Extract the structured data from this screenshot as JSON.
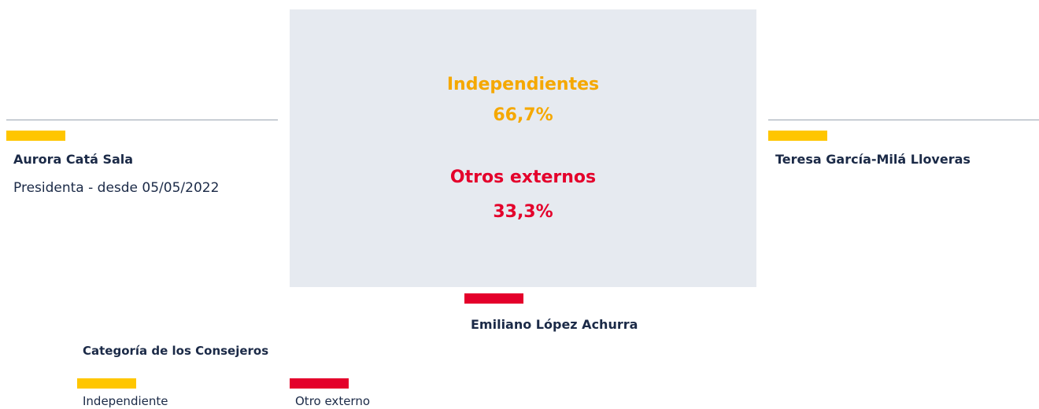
{
  "summary": [
    {
      "label": "Independientes",
      "value": "66,7%"
    },
    {
      "label": "Otros externos",
      "value": "33,3%"
    }
  ],
  "members": [
    {
      "name": "Aurora Catá Sala",
      "role": "Presidenta - desde 05/05/2022"
    },
    {
      "name": "Teresa García-Milá Lloveras"
    },
    {
      "name": "Emiliano López Achurra"
    }
  ],
  "legend": {
    "title": "Categoría de los Consejeros",
    "items": [
      "Independiente",
      "Otro externo"
    ]
  }
}
